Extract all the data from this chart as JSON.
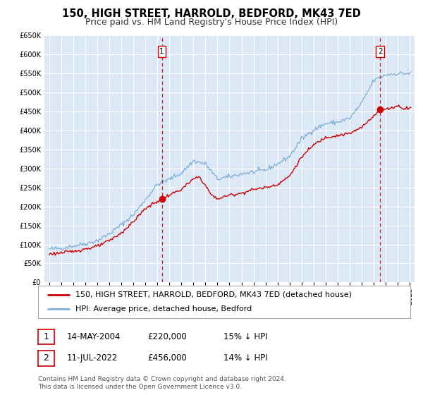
{
  "title": "150, HIGH STREET, HARROLD, BEDFORD, MK43 7ED",
  "subtitle": "Price paid vs. HM Land Registry's House Price Index (HPI)",
  "ylim": [
    0,
    650000
  ],
  "yticks": [
    0,
    50000,
    100000,
    150000,
    200000,
    250000,
    300000,
    350000,
    400000,
    450000,
    500000,
    550000,
    600000,
    650000
  ],
  "legend_line1": "150, HIGH STREET, HARROLD, BEDFORD, MK43 7ED (detached house)",
  "legend_line2": "HPI: Average price, detached house, Bedford",
  "marker1_label": "1",
  "marker1_date": "14-MAY-2004",
  "marker1_price": "£220,000",
  "marker1_hpi": "15% ↓ HPI",
  "marker1_x": 2004.37,
  "marker1_y": 220000,
  "marker2_label": "2",
  "marker2_date": "11-JUL-2022",
  "marker2_price": "£456,000",
  "marker2_hpi": "14% ↓ HPI",
  "marker2_x": 2022.53,
  "marker2_y": 456000,
  "vline1_x": 2004.37,
  "vline2_x": 2022.53,
  "line1_color": "#cc0000",
  "line2_color": "#7aaed6",
  "background_color": "#dce8f5",
  "grid_color": "#ffffff",
  "footer_text": "Contains HM Land Registry data © Crown copyright and database right 2024.\nThis data is licensed under the Open Government Licence v3.0.",
  "title_fontsize": 10.5,
  "subtitle_fontsize": 9,
  "tick_fontsize": 7,
  "legend_fontsize": 8,
  "annotation_fontsize": 8.5,
  "hpi_anchors_x": [
    1995,
    1996,
    1997,
    1998,
    1999,
    2000,
    2001,
    2002,
    2003,
    2004,
    2005,
    2006,
    2007,
    2008,
    2009,
    2010,
    2011,
    2012,
    2013,
    2014,
    2015,
    2016,
    2017,
    2018,
    2019,
    2020,
    2021,
    2022,
    2023,
    2024,
    2025
  ],
  "hpi_anchors_y": [
    88000,
    90000,
    96000,
    102000,
    110000,
    128000,
    152000,
    178000,
    218000,
    258000,
    272000,
    288000,
    320000,
    312000,
    272000,
    278000,
    286000,
    291000,
    296000,
    312000,
    332000,
    378000,
    402000,
    418000,
    422000,
    432000,
    472000,
    532000,
    547000,
    550000,
    550000
  ],
  "pp_anchors_x": [
    1995,
    1996,
    1997,
    1998,
    1999,
    2000,
    2001,
    2002,
    2003,
    2004.37,
    2005,
    2006,
    2007,
    2007.5,
    2008,
    2008.5,
    2009,
    2010,
    2011,
    2012,
    2013,
    2014,
    2015,
    2016,
    2017,
    2018,
    2019,
    2020,
    2021,
    2022.53,
    2023,
    2023.5,
    2024,
    2024.5,
    2025
  ],
  "pp_anchors_y": [
    75000,
    78000,
    82000,
    88000,
    95000,
    110000,
    130000,
    160000,
    195000,
    220000,
    230000,
    245000,
    272000,
    278000,
    255000,
    230000,
    220000,
    230000,
    235000,
    245000,
    250000,
    258000,
    280000,
    330000,
    362000,
    382000,
    387000,
    392000,
    408000,
    456000,
    456000,
    460000,
    465000,
    458000,
    460000
  ],
  "hpi_noise_seed": 42,
  "hpi_noise_std": 3000,
  "pp_noise_seed": 123,
  "pp_noise_std": 2000,
  "xlim_left": 1994.6,
  "xlim_right": 2025.4
}
